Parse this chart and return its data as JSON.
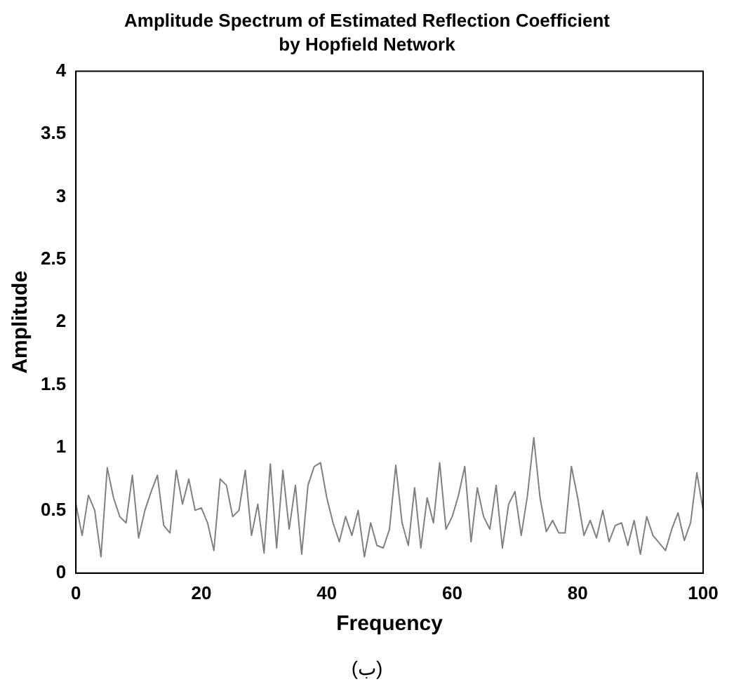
{
  "chart_data": {
    "type": "line",
    "title": "Amplitude Spectrum of Estimated Reflection Coefficient",
    "subtitle": "by Hopfield Network",
    "xlabel": "Frequency",
    "ylabel": "Amplitude",
    "annotations": [
      "(ب)"
    ],
    "x": [
      0,
      1,
      2,
      3,
      4,
      5,
      6,
      7,
      8,
      9,
      10,
      11,
      12,
      13,
      14,
      15,
      16,
      17,
      18,
      19,
      20,
      21,
      22,
      23,
      24,
      25,
      26,
      27,
      28,
      29,
      30,
      31,
      32,
      33,
      34,
      35,
      36,
      37,
      38,
      39,
      40,
      41,
      42,
      43,
      44,
      45,
      46,
      47,
      48,
      49,
      50,
      51,
      52,
      53,
      54,
      55,
      56,
      57,
      58,
      59,
      60,
      61,
      62,
      63,
      64,
      65,
      66,
      67,
      68,
      69,
      70,
      71,
      72,
      73,
      74,
      75,
      76,
      77,
      78,
      79,
      80,
      81,
      82,
      83,
      84,
      85,
      86,
      87,
      88,
      89,
      90,
      91,
      92,
      93,
      94,
      95,
      96,
      97,
      98,
      99,
      100
    ],
    "series": [
      {
        "color": "#808080",
        "values": [
          0.55,
          0.3,
          0.62,
          0.5,
          0.13,
          0.84,
          0.6,
          0.45,
          0.4,
          0.78,
          0.28,
          0.5,
          0.65,
          0.78,
          0.38,
          0.32,
          0.82,
          0.55,
          0.75,
          0.5,
          0.52,
          0.4,
          0.18,
          0.75,
          0.7,
          0.45,
          0.5,
          0.82,
          0.3,
          0.55,
          0.16,
          0.87,
          0.2,
          0.82,
          0.35,
          0.7,
          0.15,
          0.7,
          0.85,
          0.88,
          0.6,
          0.4,
          0.25,
          0.45,
          0.3,
          0.5,
          0.13,
          0.4,
          0.22,
          0.2,
          0.35,
          0.86,
          0.4,
          0.22,
          0.68,
          0.2,
          0.6,
          0.4,
          0.88,
          0.35,
          0.45,
          0.62,
          0.85,
          0.25,
          0.68,
          0.45,
          0.35,
          0.7,
          0.2,
          0.55,
          0.65,
          0.3,
          0.62,
          1.08,
          0.6,
          0.33,
          0.42,
          0.32,
          0.32,
          0.85,
          0.6,
          0.3,
          0.42,
          0.28,
          0.5,
          0.25,
          0.38,
          0.4,
          0.22,
          0.42,
          0.15,
          0.45,
          0.3,
          0.24,
          0.18,
          0.35,
          0.48,
          0.26,
          0.4,
          0.8,
          0.5
        ]
      }
    ],
    "xlim": [
      0,
      100
    ],
    "xticks": [
      0,
      20,
      40,
      60,
      80,
      100
    ],
    "ylim": [
      0,
      4
    ],
    "yticks": [
      0,
      0.5,
      1,
      1.5,
      2,
      2.5,
      3,
      3.5,
      4
    ],
    "grid": false,
    "legend": false,
    "marker": "none"
  }
}
